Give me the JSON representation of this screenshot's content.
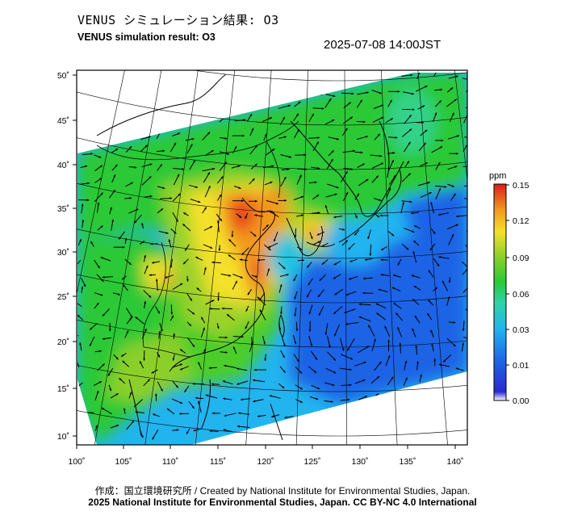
{
  "header": {
    "title_jp": "VENUS シミュレーション結果: O3",
    "title_en": "VENUS simulation result: O3",
    "timestamp": "2025-07-08 14:00JST"
  },
  "map": {
    "lon_labels": [
      "100˚",
      "105˚",
      "110˚",
      "115˚",
      "120˚",
      "125˚",
      "130˚",
      "135˚",
      "140˚"
    ],
    "lat_labels": [
      "50˚",
      "45˚",
      "40˚",
      "35˚",
      "30˚",
      "25˚",
      "20˚",
      "15˚",
      "10˚"
    ],
    "lon_range": [
      100,
      140
    ],
    "lat_range": [
      9,
      51
    ]
  },
  "colorbar": {
    "unit": "ppm",
    "tick_labels": [
      "0.15",
      "0.12",
      "0.09",
      "0.06",
      "0.03",
      "0.01",
      "0.00"
    ],
    "colors": [
      "#ffffff",
      "#1b3fd0",
      "#1e6fe8",
      "#22b4ef",
      "#33d28a",
      "#2bc934",
      "#9ad22a",
      "#f4e12a",
      "#f29a1f",
      "#e8401a",
      "#d81e1e"
    ]
  },
  "credits": {
    "line1": "作成：国立環境研究所 / Created by National Institute for Environmental Studies, Japan.",
    "line2": "2025 National Institute for Environmental Studies, Japan. CC BY-NC 4.0 International"
  }
}
